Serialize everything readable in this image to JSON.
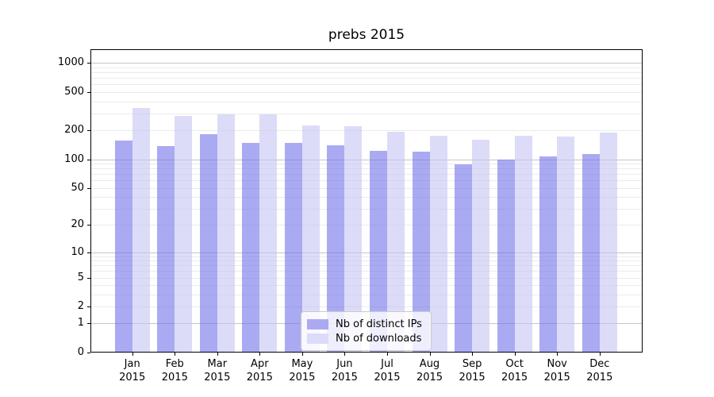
{
  "chart_data": {
    "type": "bar",
    "title": "prebs 2015",
    "categories": [
      "Jan 2015",
      "Feb 2015",
      "Mar 2015",
      "Apr 2015",
      "May 2015",
      "Jun 2015",
      "Jul 2015",
      "Aug 2015",
      "Sep 2015",
      "Oct 2015",
      "Nov 2015",
      "Dec 2015"
    ],
    "months": [
      "Jan",
      "Feb",
      "Mar",
      "Apr",
      "May",
      "Jun",
      "Jul",
      "Aug",
      "Sep",
      "Oct",
      "Nov",
      "Dec"
    ],
    "year": "2015",
    "series": [
      {
        "name": "Nb of distinct IPs",
        "color": "#abaaf0",
        "fill": "rgba(113,113,233,0.6)",
        "values": [
          158,
          136,
          181,
          148,
          147,
          139,
          122,
          121,
          88,
          100,
          106,
          113
        ]
      },
      {
        "name": "Nb of downloads",
        "color": "#dcdcf8",
        "fill": "rgba(197,197,243,0.6)",
        "values": [
          343,
          284,
          293,
          293,
          225,
          219,
          193,
          176,
          160,
          176,
          171,
          190
        ]
      }
    ],
    "xlabel": "",
    "ylabel": "",
    "yscale": "log(1+y)",
    "yticks": [
      0,
      1,
      2,
      5,
      10,
      20,
      50,
      100,
      200,
      500,
      1000
    ],
    "ylim": [
      0,
      1390
    ],
    "grid": true,
    "legend_position": "lower center"
  }
}
